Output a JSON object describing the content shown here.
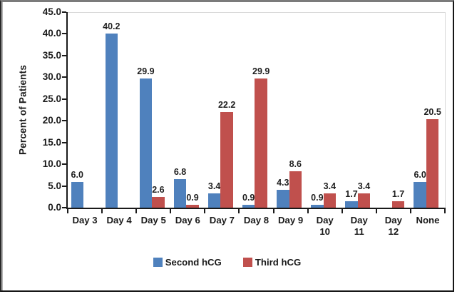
{
  "chart_data": {
    "type": "bar",
    "title": "",
    "ylabel": "Percent of Patients",
    "xlabel": "",
    "ylim": [
      0,
      45
    ],
    "ytick_labels": [
      "0.0",
      "5.0",
      "10.0",
      "15.0",
      "20.0",
      "25.0",
      "30.0",
      "35.0",
      "40.0",
      "45.0"
    ],
    "categories": [
      "Day 3",
      "Day 4",
      "Day 5",
      "Day 6",
      "Day 7",
      "Day 8",
      "Day 9",
      "Day 10",
      "Day 11",
      "Day 12",
      "None"
    ],
    "categories_display": [
      "Day 3",
      "Day 4",
      "Day 5",
      "Day 6",
      "Day 7",
      "Day 8",
      "Day 9",
      "Day\n10",
      "Day\n11",
      "Day\n12",
      "None"
    ],
    "series": [
      {
        "name": "Second hCG",
        "color": "#4F81BD",
        "values": [
          6.0,
          40.2,
          29.9,
          6.8,
          3.4,
          0.9,
          4.3,
          0.9,
          1.7,
          null,
          6.0
        ]
      },
      {
        "name": "Third hCG",
        "color": "#C0504D",
        "values": [
          null,
          null,
          2.6,
          0.9,
          22.2,
          29.9,
          8.6,
          3.4,
          3.4,
          1.7,
          20.5
        ]
      }
    ],
    "bar_value_labels": true,
    "grid": false,
    "legend_position": "bottom"
  },
  "colors": {
    "axis": "#1a1a1a",
    "plot_border": "#d9d9d9",
    "frame_top": "#7b7b7b",
    "frame_dark": "#161616",
    "label_text": "#1f1f1f"
  }
}
